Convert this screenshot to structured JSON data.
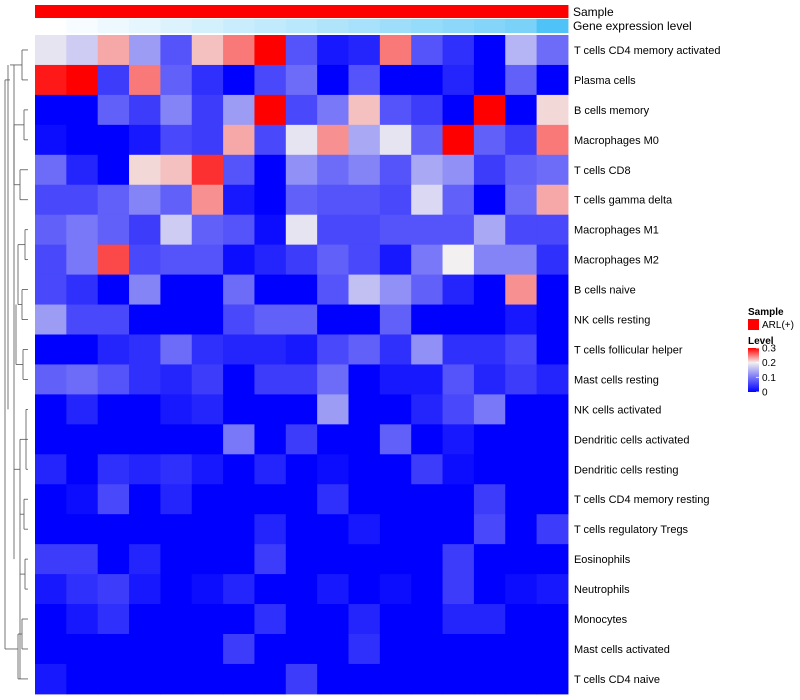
{
  "chart_data": {
    "type": "heatmap",
    "title": "",
    "annotations": {
      "sample_label": "Sample",
      "gene_expression_label": "Gene expression level"
    },
    "rows": [
      "T cells CD4 memory activated",
      "Plasma cells",
      "B cells memory",
      "Macrophages M0",
      "T cells CD8",
      "T cells gamma delta",
      "Macrophages M1",
      "Macrophages M2",
      "B cells naive",
      "NK cells resting",
      "T cells follicular helper",
      "Mast cells resting",
      "NK cells activated",
      "Dendritic cells activated",
      "Dendritic cells resting",
      "T cells CD4 memory resting",
      "T cells regulatory  Tregs",
      "Eosinophils",
      "Neutrophils",
      "Monocytes",
      "Mast cells activated",
      "T cells CD4 naive"
    ],
    "values": [
      [
        0.19,
        0.17,
        0.23,
        0.13,
        0.07,
        0.22,
        0.25,
        0.3,
        0.07,
        0.02,
        0.03,
        0.25,
        0.07,
        0.04,
        0.0,
        0.15,
        0.09
      ],
      [
        0.29,
        0.3,
        0.05,
        0.25,
        0.08,
        0.04,
        0.0,
        0.06,
        0.09,
        0.0,
        0.07,
        0.0,
        0.0,
        0.03,
        0.0,
        0.08,
        0.0
      ],
      [
        0.0,
        0.0,
        0.08,
        0.05,
        0.11,
        0.05,
        0.13,
        0.3,
        0.06,
        0.1,
        0.22,
        0.07,
        0.05,
        0.0,
        0.3,
        0.0,
        0.21
      ],
      [
        0.01,
        0.0,
        0.0,
        0.02,
        0.06,
        0.05,
        0.23,
        0.06,
        0.19,
        0.24,
        0.14,
        0.19,
        0.08,
        0.3,
        0.08,
        0.05,
        0.25
      ],
      [
        0.09,
        0.03,
        0.0,
        0.21,
        0.22,
        0.28,
        0.07,
        0.0,
        0.12,
        0.09,
        0.11,
        0.07,
        0.14,
        0.12,
        0.05,
        0.08,
        0.09
      ],
      [
        0.06,
        0.06,
        0.08,
        0.11,
        0.08,
        0.24,
        0.02,
        0.0,
        0.08,
        0.07,
        0.07,
        0.06,
        0.18,
        0.08,
        0.0,
        0.09,
        0.23
      ],
      [
        0.08,
        0.1,
        0.08,
        0.05,
        0.17,
        0.08,
        0.07,
        0.01,
        0.19,
        0.06,
        0.06,
        0.07,
        0.07,
        0.07,
        0.14,
        0.06,
        0.06
      ],
      [
        0.06,
        0.1,
        0.27,
        0.06,
        0.07,
        0.07,
        0.01,
        0.03,
        0.05,
        0.08,
        0.06,
        0.02,
        0.1,
        0.2,
        0.11,
        0.11,
        0.04
      ],
      [
        0.06,
        0.04,
        0.0,
        0.11,
        0.0,
        0.0,
        0.09,
        0.0,
        0.0,
        0.07,
        0.16,
        0.12,
        0.08,
        0.03,
        0.0,
        0.24,
        0.0
      ],
      [
        0.13,
        0.06,
        0.06,
        0.0,
        0.0,
        0.0,
        0.06,
        0.08,
        0.08,
        0.0,
        0.0,
        0.08,
        0.0,
        0.0,
        0.0,
        0.02,
        0.0
      ],
      [
        0.0,
        0.0,
        0.03,
        0.04,
        0.09,
        0.04,
        0.03,
        0.03,
        0.02,
        0.06,
        0.08,
        0.04,
        0.12,
        0.04,
        0.04,
        0.06,
        0.0
      ],
      [
        0.08,
        0.09,
        0.07,
        0.04,
        0.03,
        0.05,
        0.0,
        0.05,
        0.05,
        0.09,
        0.0,
        0.02,
        0.02,
        0.07,
        0.03,
        0.05,
        0.03
      ],
      [
        0.0,
        0.03,
        0.0,
        0.0,
        0.02,
        0.03,
        0.0,
        0.0,
        0.0,
        0.13,
        0.0,
        0.0,
        0.03,
        0.06,
        0.1,
        0.0,
        0.0
      ],
      [
        0.0,
        0.0,
        0.0,
        0.0,
        0.0,
        0.0,
        0.1,
        0.0,
        0.05,
        0.0,
        0.0,
        0.08,
        0.0,
        0.02,
        0.0,
        0.0,
        0.0
      ],
      [
        0.03,
        0.0,
        0.04,
        0.03,
        0.04,
        0.02,
        0.0,
        0.03,
        0.0,
        0.01,
        0.0,
        0.0,
        0.05,
        0.01,
        0.0,
        0.0,
        0.0
      ],
      [
        0.0,
        0.01,
        0.06,
        0.0,
        0.03,
        0.0,
        0.0,
        0.0,
        0.0,
        0.04,
        0.0,
        0.0,
        0.0,
        0.0,
        0.05,
        0.0,
        0.0
      ],
      [
        0.0,
        0.0,
        0.0,
        0.0,
        0.0,
        0.0,
        0.0,
        0.03,
        0.0,
        0.0,
        0.02,
        0.0,
        0.0,
        0.0,
        0.06,
        0.0,
        0.05
      ],
      [
        0.05,
        0.05,
        0.0,
        0.03,
        0.0,
        0.0,
        0.0,
        0.05,
        0.0,
        0.0,
        0.0,
        0.0,
        0.0,
        0.05,
        0.0,
        0.0,
        0.0
      ],
      [
        0.02,
        0.04,
        0.05,
        0.02,
        0.0,
        0.01,
        0.03,
        0.0,
        0.0,
        0.02,
        0.0,
        0.01,
        0.0,
        0.05,
        0.0,
        0.01,
        0.02
      ],
      [
        0.0,
        0.02,
        0.04,
        0.0,
        0.0,
        0.0,
        0.0,
        0.04,
        0.0,
        0.0,
        0.03,
        0.0,
        0.0,
        0.03,
        0.03,
        0.0,
        0.0
      ],
      [
        0.0,
        0.0,
        0.0,
        0.0,
        0.0,
        0.0,
        0.05,
        0.0,
        0.0,
        0.0,
        0.04,
        0.0,
        0.0,
        0.0,
        0.0,
        0.0,
        0.0
      ],
      [
        0.02,
        0.0,
        0.0,
        0.0,
        0.0,
        0.0,
        0.0,
        0.0,
        0.05,
        0.0,
        0.0,
        0.0,
        0.0,
        0.0,
        0.0,
        0.0,
        0.0
      ]
    ],
    "column_count": 17,
    "color_scale": {
      "min": 0,
      "max": 0.3,
      "low_color": "#0000ff",
      "mid_color": "#f2f0f0",
      "high_color": "#ff0000",
      "mid_value": 0.2
    },
    "sample_annotation": {
      "color": "#ff0000",
      "values": [
        "ARL(+)",
        "ARL(+)",
        "ARL(+)",
        "ARL(+)",
        "ARL(+)",
        "ARL(+)",
        "ARL(+)",
        "ARL(+)",
        "ARL(+)",
        "ARL(+)",
        "ARL(+)",
        "ARL(+)",
        "ARL(+)",
        "ARL(+)",
        "ARL(+)",
        "ARL(+)",
        "ARL(+)"
      ]
    },
    "gene_expression_annotation": {
      "values": [
        0.0,
        0.05,
        0.1,
        0.15,
        0.2,
        0.25,
        0.3,
        0.35,
        0.4,
        0.45,
        0.5,
        0.55,
        0.6,
        0.65,
        0.7,
        0.75,
        1.0
      ],
      "low_color": "#ffffff",
      "high_color": "#4fc3f7"
    },
    "legend": {
      "sample_title": "Sample",
      "sample_entry": "ARL(+)",
      "level_title": "Level",
      "level_ticks": [
        "0.3",
        "0.2",
        "0.1",
        "0"
      ],
      "level_tick_values": [
        0.3,
        0.2,
        0.1,
        0
      ]
    },
    "row_dendrogram": true
  }
}
